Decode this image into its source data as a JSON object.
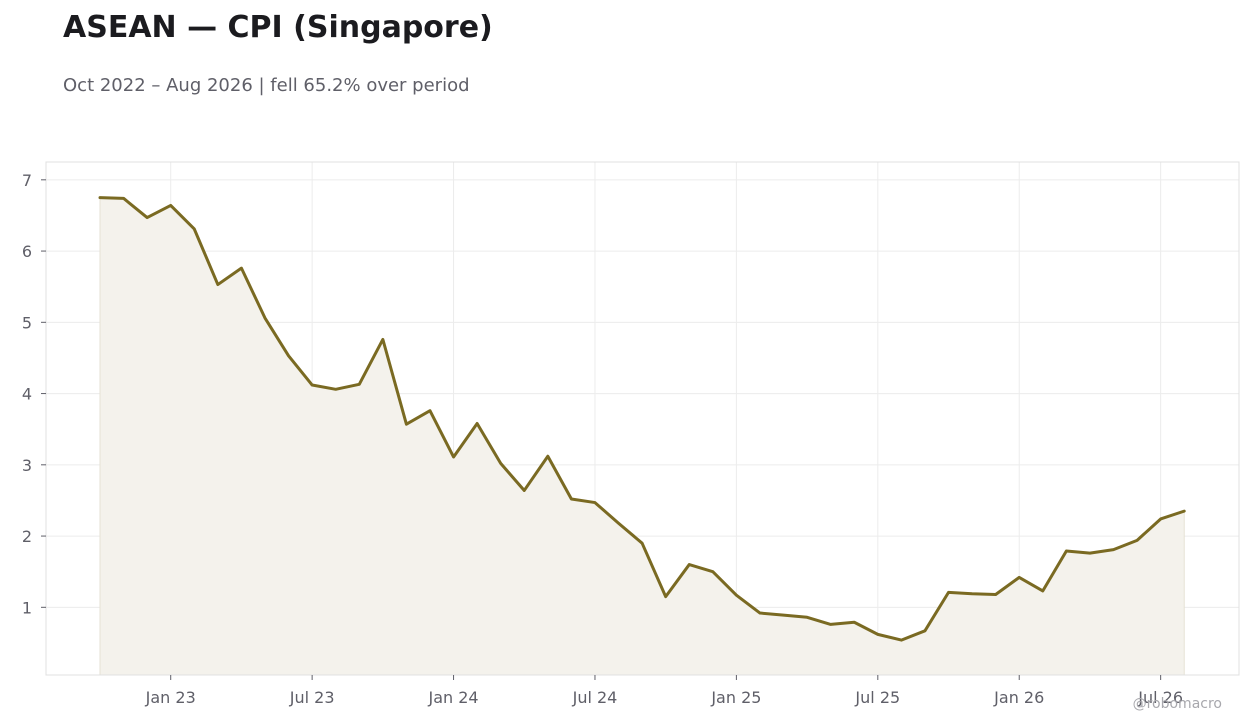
{
  "header": {
    "title": "ASEAN — CPI (Singapore)",
    "subtitle": "Oct 2022 – Aug 2026 | fell 65.2% over period"
  },
  "watermark": "@robomacro",
  "colors": {
    "line": "#7a6a22",
    "fill": "#f4f2ec",
    "grid": "#ececec",
    "frame": "#e0e0e0",
    "tick_text": "#5f5f68"
  },
  "chart_data": {
    "type": "area",
    "x_start": "2022-10",
    "x": [
      "Oct 22",
      "Nov 22",
      "Dec 22",
      "Jan 23",
      "Feb 23",
      "Mar 23",
      "Apr 23",
      "May 23",
      "Jun 23",
      "Jul 23",
      "Aug 23",
      "Sep 23",
      "Oct 23",
      "Nov 23",
      "Dec 23",
      "Jan 24",
      "Feb 24",
      "Mar 24",
      "Apr 24",
      "May 24",
      "Jun 24",
      "Jul 24",
      "Aug 24",
      "Sep 24",
      "Oct 24",
      "Nov 24",
      "Dec 24",
      "Jan 25",
      "Feb 25",
      "Mar 25",
      "Apr 25",
      "May 25",
      "Jun 25",
      "Jul 25",
      "Aug 25",
      "Sep 25",
      "Oct 25",
      "Nov 25",
      "Dec 25",
      "Jan 26",
      "Feb 26",
      "Mar 26",
      "Apr 26",
      "May 26",
      "Jun 26",
      "Jul 26",
      "Aug 26"
    ],
    "series": [
      {
        "values": [
          6.75,
          6.74,
          6.47,
          6.64,
          6.31,
          5.53,
          5.76,
          5.06,
          4.53,
          4.12,
          4.06,
          4.13,
          4.76,
          3.57,
          3.76,
          3.11,
          3.58,
          3.02,
          2.64,
          3.12,
          2.52,
          2.47,
          2.18,
          1.9,
          1.15,
          1.6,
          1.5,
          1.17,
          0.92,
          0.89,
          0.86,
          0.76,
          0.79,
          0.62,
          0.54,
          0.67,
          1.21,
          1.19,
          1.18,
          1.42,
          1.23,
          1.79,
          1.76,
          1.81,
          1.94,
          2.24,
          2.35
        ]
      }
    ],
    "x_ticks": [
      "Jan 23",
      "Jul 23",
      "Jan 24",
      "Jul 24",
      "Jan 25",
      "Jul 25",
      "Jan 26",
      "Jul 26"
    ],
    "x_tick_index": [
      3,
      9,
      15,
      21,
      27,
      33,
      39,
      45
    ],
    "y_ticks": [
      "1",
      "2",
      "3",
      "4",
      "5",
      "6",
      "7"
    ],
    "ylim": [
      0.05,
      7.25
    ],
    "grid": true,
    "legend": "none",
    "xlabel": "",
    "ylabel": ""
  }
}
